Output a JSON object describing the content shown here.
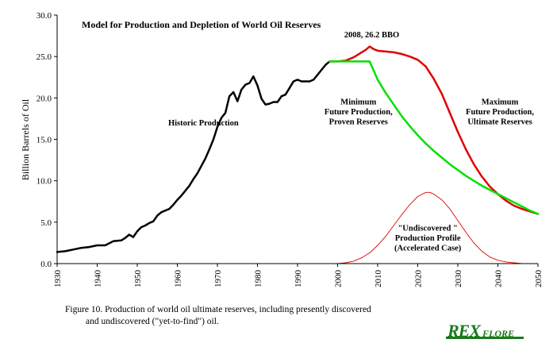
{
  "chart_data": {
    "type": "line",
    "title": "Model for Production and Depletion of World Oil Reserves",
    "ylabel": "Billion Barrels of Oil",
    "xlabel": "",
    "xlim": [
      1930,
      2050
    ],
    "ylim": [
      0,
      30
    ],
    "x_ticks": [
      "1930",
      "1940",
      "1950",
      "1960",
      "1970",
      "1980",
      "1990",
      "2000",
      "2010",
      "2020",
      "2030",
      "2040",
      "2050"
    ],
    "y_ticks": [
      "0.0",
      "5.0",
      "10.0",
      "15.0",
      "20.0",
      "25.0",
      "30.0"
    ],
    "colors": {
      "historic": "#000000",
      "maximum": "#e00000",
      "minimum": "#00e000",
      "undiscovered": "#e00000"
    },
    "series": [
      {
        "key": "historic",
        "x": [
          1930,
          1932,
          1934,
          1936,
          1938,
          1940,
          1942,
          1944,
          1946,
          1947,
          1948,
          1949,
          1950,
          1951,
          1952,
          1953,
          1954,
          1955,
          1956,
          1957,
          1958,
          1959,
          1960,
          1961,
          1962,
          1963,
          1964,
          1965,
          1966,
          1967,
          1968,
          1969,
          1970,
          1971,
          1972,
          1973,
          1974,
          1975,
          1976,
          1977,
          1978,
          1979,
          1980,
          1981,
          1982,
          1983,
          1984,
          1985,
          1986,
          1987,
          1988,
          1989,
          1990,
          1991,
          1992,
          1993,
          1994,
          1995,
          1996,
          1997,
          1998
        ],
        "y": [
          1.4,
          1.5,
          1.7,
          1.9,
          2.0,
          2.2,
          2.2,
          2.7,
          2.8,
          3.1,
          3.5,
          3.2,
          3.9,
          4.4,
          4.6,
          4.9,
          5.1,
          5.8,
          6.2,
          6.4,
          6.6,
          7.1,
          7.7,
          8.2,
          8.8,
          9.4,
          10.2,
          10.9,
          11.8,
          12.7,
          13.8,
          15.0,
          16.5,
          17.6,
          18.2,
          20.2,
          20.7,
          19.6,
          21.0,
          21.6,
          21.8,
          22.6,
          21.5,
          19.9,
          19.2,
          19.3,
          19.5,
          19.5,
          20.2,
          20.4,
          21.2,
          22.0,
          22.2,
          22.0,
          22.0,
          22.0,
          22.2,
          22.8,
          23.4,
          24.0,
          24.4
        ]
      },
      {
        "key": "maximum",
        "x": [
          1998,
          2000,
          2002,
          2004,
          2006,
          2007,
          2008,
          2009,
          2010,
          2012,
          2014,
          2016,
          2018,
          2020,
          2022,
          2024,
          2026,
          2028,
          2030,
          2032,
          2034,
          2036,
          2038,
          2040,
          2042,
          2044,
          2046,
          2048,
          2050
        ],
        "y": [
          24.4,
          24.4,
          24.5,
          24.9,
          25.5,
          25.8,
          26.2,
          25.9,
          25.7,
          25.6,
          25.5,
          25.3,
          25.0,
          24.6,
          23.8,
          22.3,
          20.5,
          18.2,
          15.9,
          13.8,
          12.0,
          10.5,
          9.3,
          8.4,
          7.6,
          7.0,
          6.6,
          6.3,
          6.0
        ]
      },
      {
        "key": "minimum",
        "x": [
          1998,
          2000,
          2002,
          2004,
          2006,
          2008,
          2010,
          2012,
          2014,
          2016,
          2018,
          2020,
          2022,
          2024,
          2026,
          2028,
          2030,
          2032,
          2034,
          2036,
          2038,
          2040,
          2042,
          2044,
          2046,
          2048,
          2050
        ],
        "y": [
          24.4,
          24.4,
          24.4,
          24.4,
          24.4,
          24.4,
          22.2,
          20.6,
          19.2,
          17.8,
          16.6,
          15.5,
          14.5,
          13.6,
          12.8,
          12.0,
          11.3,
          10.6,
          10.0,
          9.4,
          8.9,
          8.4,
          7.9,
          7.4,
          6.9,
          6.4,
          6.0
        ]
      },
      {
        "key": "undiscovered",
        "x": [
          2000,
          2002,
          2004,
          2006,
          2008,
          2010,
          2012,
          2014,
          2016,
          2018,
          2020,
          2022,
          2023,
          2024,
          2026,
          2028,
          2030,
          2032,
          2034,
          2036,
          2038,
          2040,
          2042,
          2044,
          2046,
          2048
        ],
        "y": [
          0.0,
          0.1,
          0.3,
          0.7,
          1.3,
          2.2,
          3.3,
          4.6,
          5.9,
          7.1,
          8.1,
          8.6,
          8.6,
          8.4,
          7.7,
          6.6,
          5.2,
          3.8,
          2.5,
          1.5,
          0.8,
          0.4,
          0.2,
          0.1,
          0.0,
          0.0
        ]
      }
    ],
    "annotations": [
      {
        "key": "peak",
        "lines": [
          "2008, 26.2 BBO"
        ],
        "x": 2008.5,
        "y": 27.3,
        "anchor": "middle"
      },
      {
        "key": "historic",
        "lines": [
          "Historic Production"
        ],
        "x": 1966.5,
        "y": 16.7,
        "anchor": "middle"
      },
      {
        "key": "minimum",
        "lines": [
          "Minimum",
          "Future Production,",
          "Proven Reserves"
        ],
        "x": 2005.2,
        "y": 19.2,
        "anchor": "middle"
      },
      {
        "key": "maximum",
        "lines": [
          "Maximum",
          "Future Production,",
          "Ultimate Reserves"
        ],
        "x": 2040.5,
        "y": 19.2,
        "anchor": "middle"
      },
      {
        "key": "undiscovered",
        "lines": [
          "\"Undiscovered \"",
          "Production Profile",
          "(Accelerated Case)"
        ],
        "x": 2022.5,
        "y": 4.0,
        "anchor": "middle"
      }
    ]
  },
  "caption": {
    "line1": "Figure 10. Production of world oil ultimate reserves, including presently discovered",
    "line2": "and undiscovered (\"yet-to-find\") oil."
  },
  "logo": {
    "text_big": "REX",
    "text_small": " FLORE"
  }
}
